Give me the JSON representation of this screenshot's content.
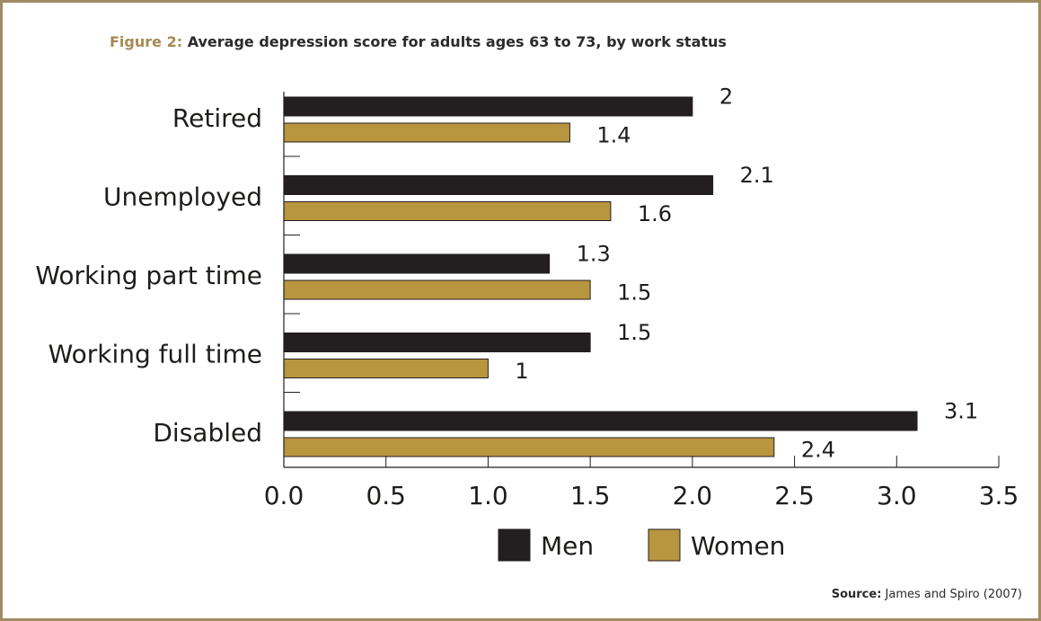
{
  "figure": {
    "label": "Figure 2:",
    "title": "Average depression score for adults ages 63 to 73, by work status"
  },
  "source": {
    "label": "Source:",
    "text": "James and Spiro (2007)"
  },
  "colors": {
    "men": "#231f20",
    "women": "#b8953f",
    "frame": "#a28b63",
    "title_label": "#a68a52"
  },
  "chart_data": {
    "type": "bar",
    "orientation": "horizontal",
    "categories": [
      "Retired",
      "Unemployed",
      "Working part time",
      "Working full time",
      "Disabled"
    ],
    "series": [
      {
        "name": "Men",
        "values": [
          2,
          2.1,
          1.3,
          1.5,
          3.1
        ],
        "labels": [
          "2",
          "2.1",
          "1.3",
          "1.5",
          "3.1"
        ]
      },
      {
        "name": "Women",
        "values": [
          1.4,
          1.6,
          1.5,
          1,
          2.4
        ],
        "labels": [
          "1.4",
          "1.6",
          "1.5",
          "1",
          "2.4"
        ]
      }
    ],
    "xlim": [
      0,
      3.5
    ],
    "ticks": [
      "0.0",
      "0.5",
      "1.0",
      "1.5",
      "2.0",
      "2.5",
      "3.0",
      "3.5"
    ],
    "grid": false,
    "legend": "bottom-center"
  }
}
